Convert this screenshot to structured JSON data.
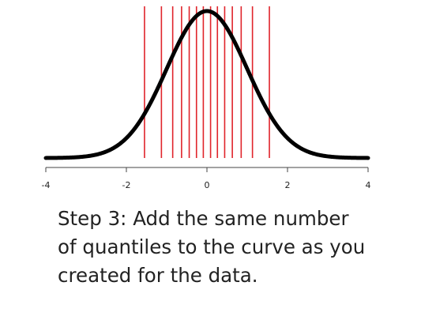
{
  "chart_data": {
    "type": "line",
    "title": "",
    "xlabel": "",
    "ylabel": "",
    "xlim": [
      -4,
      4
    ],
    "xticks": [
      -4,
      -2,
      0,
      2,
      4
    ],
    "xtick_labels": [
      "-4",
      "-2",
      "0",
      "2",
      "4"
    ],
    "series": [
      {
        "curve": "standard normal density",
        "color": "#000000"
      }
    ],
    "quantile_lines": {
      "color": "#e0242b",
      "x": [
        -1.55,
        -1.13,
        -0.85,
        -0.63,
        -0.44,
        -0.26,
        -0.09,
        0.09,
        0.26,
        0.44,
        0.63,
        0.85,
        1.13,
        1.55
      ]
    },
    "grid": false
  },
  "caption": {
    "lines": [
      "Step 3: Add the same number",
      "of quantiles to the curve as you",
      "created for the data."
    ]
  }
}
